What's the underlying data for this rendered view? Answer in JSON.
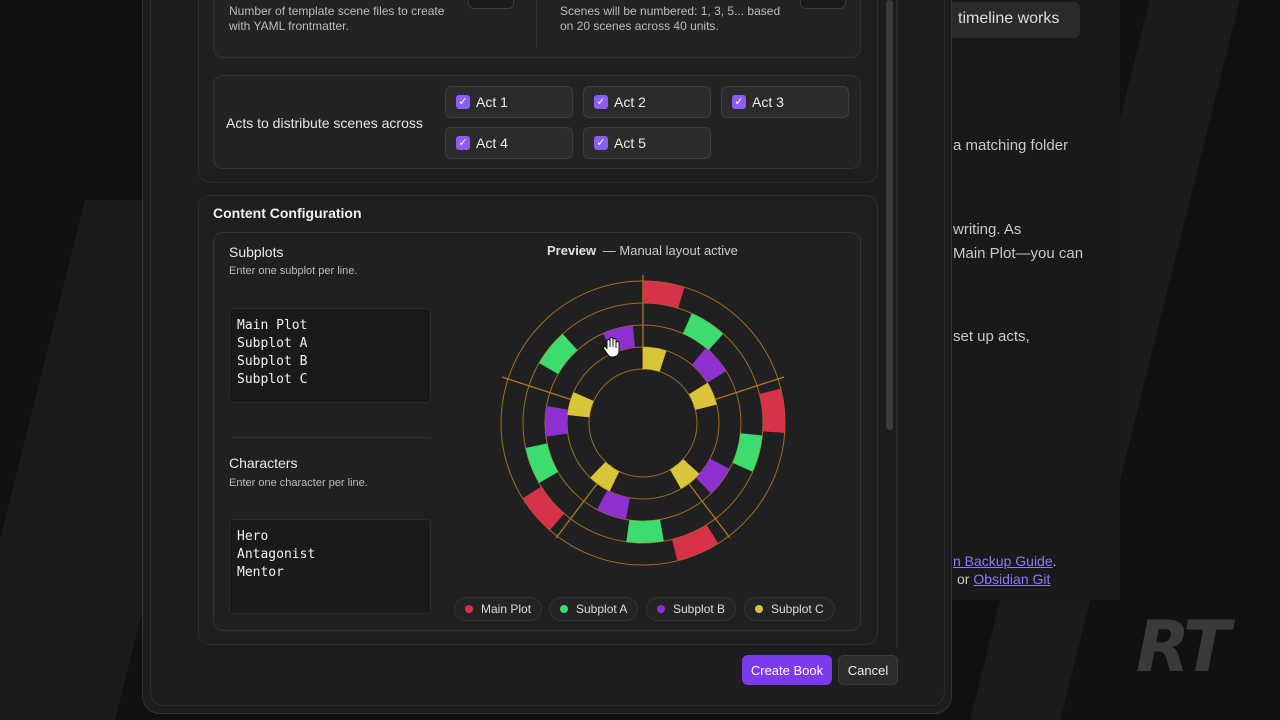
{
  "background": {
    "pill_text": "timeline works",
    "lines": [
      {
        "text": "a matching folder"
      },
      {
        "text": "writing. As"
      },
      {
        "text": "Main Plot—you can"
      },
      {
        "text": "set up acts,"
      }
    ],
    "link1": "n Backup Guide",
    "link1_suffix": ".",
    "link2_prefix": "or ",
    "link2": "Obsidian Git",
    "logo": "RT"
  },
  "scene_config": {
    "template_desc_line1": "Number of template scene files to create",
    "template_desc_line2": "with YAML frontmatter.",
    "numbering_line1": "Scenes will be numbered: 1, 3, 5... based",
    "numbering_line2": "on 20 scenes across 40 units.",
    "acts_label": "Acts to distribute scenes across",
    "acts": [
      {
        "label": "Act 1",
        "checked": true
      },
      {
        "label": "Act 2",
        "checked": true
      },
      {
        "label": "Act 3",
        "checked": true
      },
      {
        "label": "Act 4",
        "checked": true
      },
      {
        "label": "Act 5",
        "checked": true
      }
    ]
  },
  "content": {
    "title": "Content Configuration",
    "subplots_label": "Subplots",
    "subplots_hint": "Enter one subplot per line.",
    "subplots": [
      "Main Plot",
      "Subplot A",
      "Subplot B",
      "Subplot C"
    ],
    "characters_label": "Characters",
    "characters_hint": "Enter one character per line.",
    "characters": [
      "Hero",
      "Antagonist",
      "Mentor"
    ],
    "preview_label": "Preview",
    "preview_status": "— Manual layout active"
  },
  "legend": [
    {
      "name": "Main Plot",
      "color": "#d6334a"
    },
    {
      "name": "Subplot A",
      "color": "#3ddc6e"
    },
    {
      "name": "Subplot B",
      "color": "#8e2fd0"
    },
    {
      "name": "Subplot C",
      "color": "#d8c53a"
    }
  ],
  "buttons": {
    "create": "Create Book",
    "cancel": "Cancel"
  }
}
